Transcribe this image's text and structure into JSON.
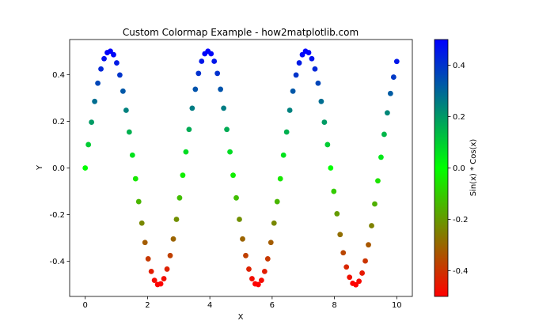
{
  "chart_data": {
    "type": "scatter",
    "title": "Custom Colormap Example - how2matplotlib.com",
    "xlabel": "X",
    "ylabel": "Y",
    "xlim": [
      -0.5,
      10.5
    ],
    "ylim": [
      -0.55,
      0.55
    ],
    "x_ticks": [
      0,
      2,
      4,
      6,
      8,
      10
    ],
    "x_tick_labels": [
      "0",
      "2",
      "4",
      "6",
      "8",
      "10"
    ],
    "y_ticks": [
      -0.4,
      -0.2,
      0.0,
      0.2,
      0.4
    ],
    "y_tick_labels": [
      "-0.4",
      "-0.2",
      "0.0",
      "0.2",
      "0.4"
    ],
    "grid": false,
    "marker": "circle",
    "x": [
      0.0,
      0.101,
      0.202,
      0.303,
      0.404,
      0.505,
      0.606,
      0.707,
      0.808,
      0.909,
      1.01,
      1.111,
      1.212,
      1.313,
      1.414,
      1.515,
      1.616,
      1.717,
      1.818,
      1.919,
      2.02,
      2.121,
      2.222,
      2.323,
      2.424,
      2.525,
      2.626,
      2.727,
      2.828,
      2.929,
      3.03,
      3.131,
      3.232,
      3.333,
      3.434,
      3.535,
      3.636,
      3.737,
      3.838,
      3.939,
      4.04,
      4.141,
      4.242,
      4.343,
      4.444,
      4.545,
      4.646,
      4.747,
      4.848,
      4.949,
      5.051,
      5.152,
      5.253,
      5.354,
      5.455,
      5.556,
      5.657,
      5.758,
      5.859,
      5.96,
      6.061,
      6.162,
      6.263,
      6.364,
      6.465,
      6.566,
      6.667,
      6.768,
      6.869,
      6.97,
      7.071,
      7.172,
      7.273,
      7.374,
      7.475,
      7.576,
      7.677,
      7.778,
      7.879,
      7.98,
      8.081,
      8.182,
      8.283,
      8.384,
      8.485,
      8.586,
      8.687,
      8.788,
      8.889,
      8.99,
      9.091,
      9.192,
      9.293,
      9.394,
      9.495,
      9.596,
      9.697,
      9.798,
      9.899,
      10.0
    ],
    "y": [
      0.0,
      0.1,
      0.196,
      0.285,
      0.363,
      0.424,
      0.468,
      0.494,
      0.5,
      0.485,
      0.45,
      0.398,
      0.329,
      0.247,
      0.154,
      0.055,
      -0.046,
      -0.144,
      -0.236,
      -0.319,
      -0.389,
      -0.443,
      -0.481,
      -0.499,
      -0.496,
      -0.474,
      -0.433,
      -0.375,
      -0.304,
      -0.22,
      -0.128,
      -0.031,
      0.069,
      0.165,
      0.256,
      0.337,
      0.405,
      0.457,
      0.489,
      0.5,
      0.489,
      0.457,
      0.405,
      0.337,
      0.256,
      0.165,
      0.069,
      -0.031,
      -0.128,
      -0.22,
      -0.304,
      -0.375,
      -0.433,
      -0.474,
      -0.496,
      -0.499,
      -0.481,
      -0.443,
      -0.389,
      -0.319,
      -0.236,
      -0.144,
      -0.046,
      0.055,
      0.154,
      0.247,
      0.329,
      0.398,
      0.45,
      0.485,
      0.5,
      0.494,
      0.468,
      0.424,
      0.363,
      0.285,
      0.196,
      0.1,
      0.0,
      -0.1,
      -0.196,
      -0.285,
      -0.363,
      -0.424,
      -0.468,
      -0.494,
      -0.5,
      -0.485,
      -0.45,
      -0.398,
      -0.329,
      -0.247,
      -0.154,
      -0.055,
      0.046,
      0.144,
      0.236,
      0.319,
      0.389,
      0.456
    ],
    "colormap": {
      "colors": [
        "#ff0000",
        "#00ff00",
        "#0000ff"
      ],
      "vmin": -0.5,
      "vmax": 0.5
    },
    "colorbar": {
      "label": "Sin(x) * Cos(x)",
      "ticks": [
        -0.4,
        -0.2,
        0.0,
        0.2,
        0.4
      ],
      "tick_labels": [
        "-0.4",
        "-0.2",
        "0.0",
        "0.2",
        "0.4"
      ]
    }
  }
}
